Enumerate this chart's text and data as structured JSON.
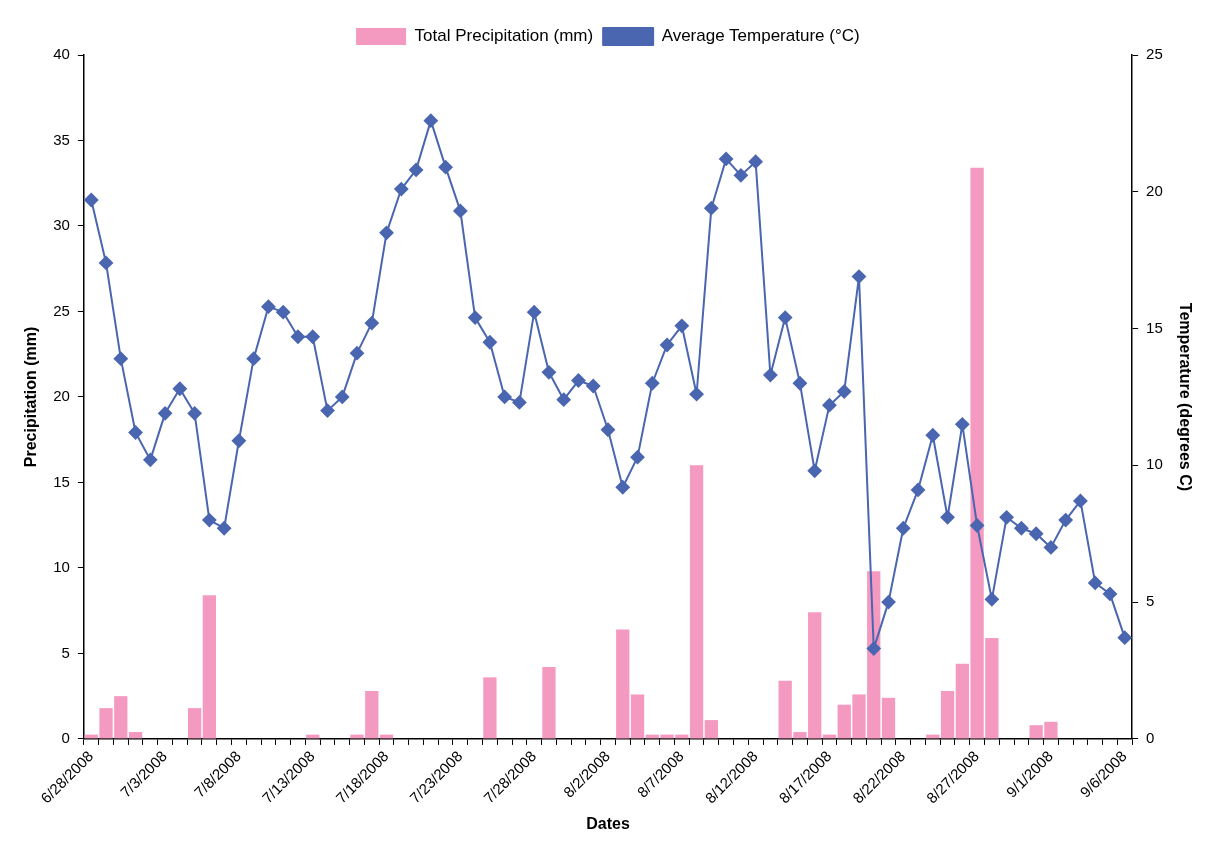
{
  "chart_data": {
    "type": "bar",
    "categories": [
      "6/28/2008",
      null,
      null,
      null,
      null,
      "7/3/2008",
      null,
      null,
      null,
      null,
      "7/8/2008",
      null,
      null,
      null,
      null,
      "7/13/2008",
      null,
      null,
      null,
      null,
      "7/18/2008",
      null,
      null,
      null,
      null,
      "7/23/2008",
      null,
      null,
      null,
      null,
      "7/28/2008",
      null,
      null,
      null,
      null,
      "8/2/2008",
      null,
      null,
      null,
      null,
      "8/7/2008",
      null,
      null,
      null,
      null,
      "8/12/2008",
      null,
      null,
      null,
      null,
      "8/17/2008",
      null,
      null,
      null,
      null,
      "8/22/2008",
      null,
      null,
      null,
      null,
      "8/27/2008",
      null,
      null,
      null,
      null,
      "9/1/2008",
      null,
      null,
      null,
      null,
      "9/6/2008"
    ],
    "series": [
      {
        "name": "Total Precipitation (mm)",
        "color": "#f49ac1",
        "values": [
          0.25,
          1.8,
          2.5,
          0.4,
          0,
          0,
          0,
          1.8,
          8.4,
          0,
          0,
          0,
          0,
          0,
          0,
          0.25,
          0,
          0,
          0.25,
          2.8,
          0.25,
          0,
          0,
          0,
          0,
          0,
          0,
          3.6,
          0,
          0,
          0,
          4.2,
          0,
          0,
          0,
          0,
          6.4,
          2.6,
          0.25,
          0.25,
          0.25,
          16.0,
          1.1,
          0,
          0,
          0,
          0,
          3.4,
          0.4,
          7.4,
          0.25,
          2.0,
          2.6,
          9.8,
          2.4,
          0,
          0,
          0.25,
          2.8,
          4.4,
          33.4,
          5.9,
          0,
          0,
          0.8,
          1.0,
          0,
          0,
          0,
          0,
          0
        ]
      },
      {
        "name": "Average Temperature (°C)",
        "type": "line",
        "axis": "y2",
        "color": "#4a66b0",
        "values": [
          19.7,
          17.4,
          13.9,
          11.2,
          10.2,
          11.9,
          12.8,
          11.9,
          8.0,
          7.7,
          10.9,
          13.9,
          15.8,
          15.6,
          14.7,
          14.7,
          12.0,
          12.5,
          14.1,
          15.2,
          18.5,
          20.1,
          20.8,
          22.6,
          20.9,
          19.3,
          15.4,
          14.5,
          12.5,
          12.3,
          15.6,
          13.4,
          12.4,
          13.1,
          12.9,
          11.3,
          9.2,
          10.3,
          13.0,
          14.4,
          15.1,
          12.6,
          19.4,
          21.2,
          20.6,
          21.1,
          13.3,
          15.4,
          13.0,
          9.8,
          12.2,
          12.7,
          16.9,
          3.3,
          5.0,
          7.7,
          9.1,
          11.1,
          8.1,
          11.5,
          7.8,
          5.1,
          8.1,
          7.7,
          7.5,
          7.0,
          8.0,
          8.7,
          5.7,
          5.3,
          3.7
        ]
      }
    ],
    "xlabel": "Dates",
    "ylabel": "Precipitation (mm)",
    "y2label": "Temperature (degrees C)",
    "ylim": [
      0,
      40
    ],
    "yticks": [
      0,
      5,
      10,
      15,
      20,
      25,
      30,
      35,
      40
    ],
    "y2lim": [
      0,
      25
    ],
    "y2ticks": [
      0,
      5,
      10,
      15,
      20,
      25
    ],
    "marker": "diamond",
    "legend": "top",
    "grid": false
  }
}
